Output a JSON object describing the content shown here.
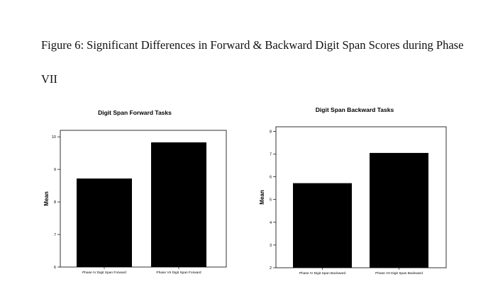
{
  "caption": "Figure 6: Significant Differences in Forward & Backward Digit Span Scores during Phase VII",
  "chart_data": [
    {
      "type": "bar",
      "title": "Digit Span Forward Tasks",
      "xlabel": "",
      "ylabel": "Mean",
      "categories": [
        "Phase IV Digit Span Forward",
        "Phase VII Digit Span Forward"
      ],
      "values": [
        8.72,
        9.83
      ],
      "ylim": [
        6,
        10.2
      ],
      "yticks": [
        6,
        7,
        8,
        9,
        10
      ],
      "bar_color": "#000000",
      "grid": false
    },
    {
      "type": "bar",
      "title": "Digit Span Backward Tasks",
      "xlabel": "",
      "ylabel": "Mean",
      "categories": [
        "Phase IV Digit Span Backward",
        "Phase VII Digit Span Backward"
      ],
      "values": [
        5.72,
        7.05
      ],
      "ylim": [
        2,
        8.2
      ],
      "yticks": [
        2,
        3,
        4,
        5,
        6,
        7,
        8
      ],
      "bar_color": "#000000",
      "grid": false
    }
  ]
}
